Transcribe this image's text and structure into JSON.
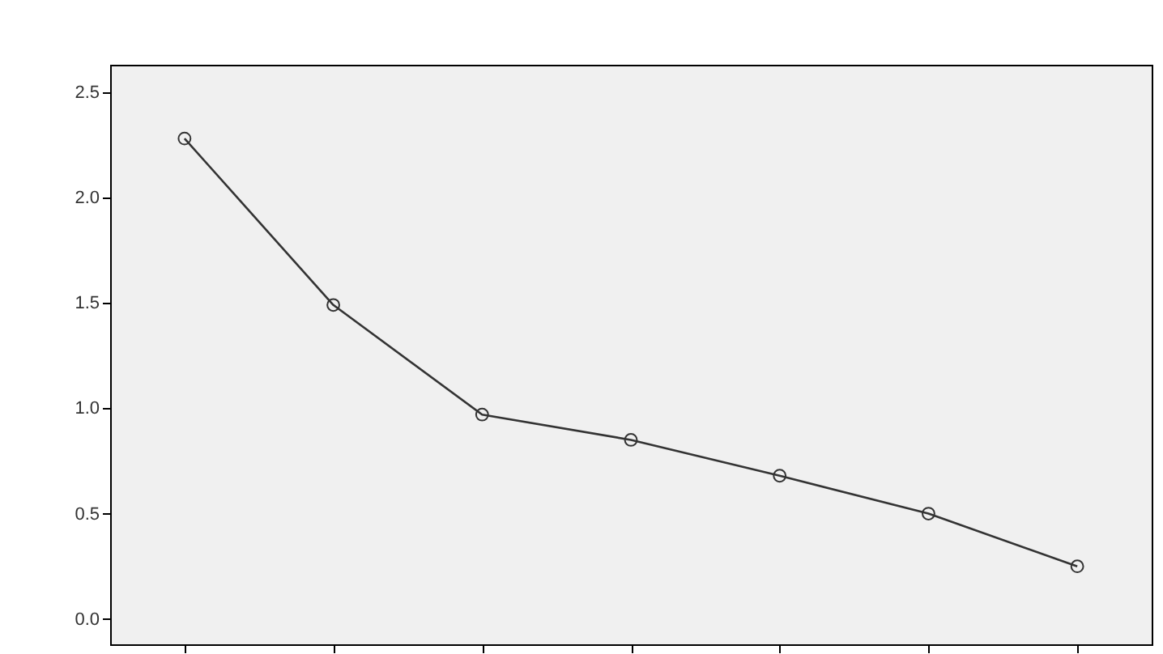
{
  "chart_data": {
    "type": "line",
    "categories": [
      null,
      null,
      null,
      null,
      null,
      null,
      null
    ],
    "series": [
      {
        "color": "#333333",
        "values": [
          2.28,
          1.49,
          0.97,
          0.85,
          0.68,
          0.5,
          0.25
        ]
      }
    ],
    "ylim": [
      -0.12,
      2.63
    ],
    "yticks": [
      {
        "value": 0,
        "label": "0.0"
      },
      0.5,
      {
        "value": 1,
        "label": "1.0"
      },
      1.5,
      {
        "value": 2,
        "label": "2.0"
      },
      2.5
    ],
    "marker": "circle",
    "grid": false,
    "tick_labels": "y"
  }
}
